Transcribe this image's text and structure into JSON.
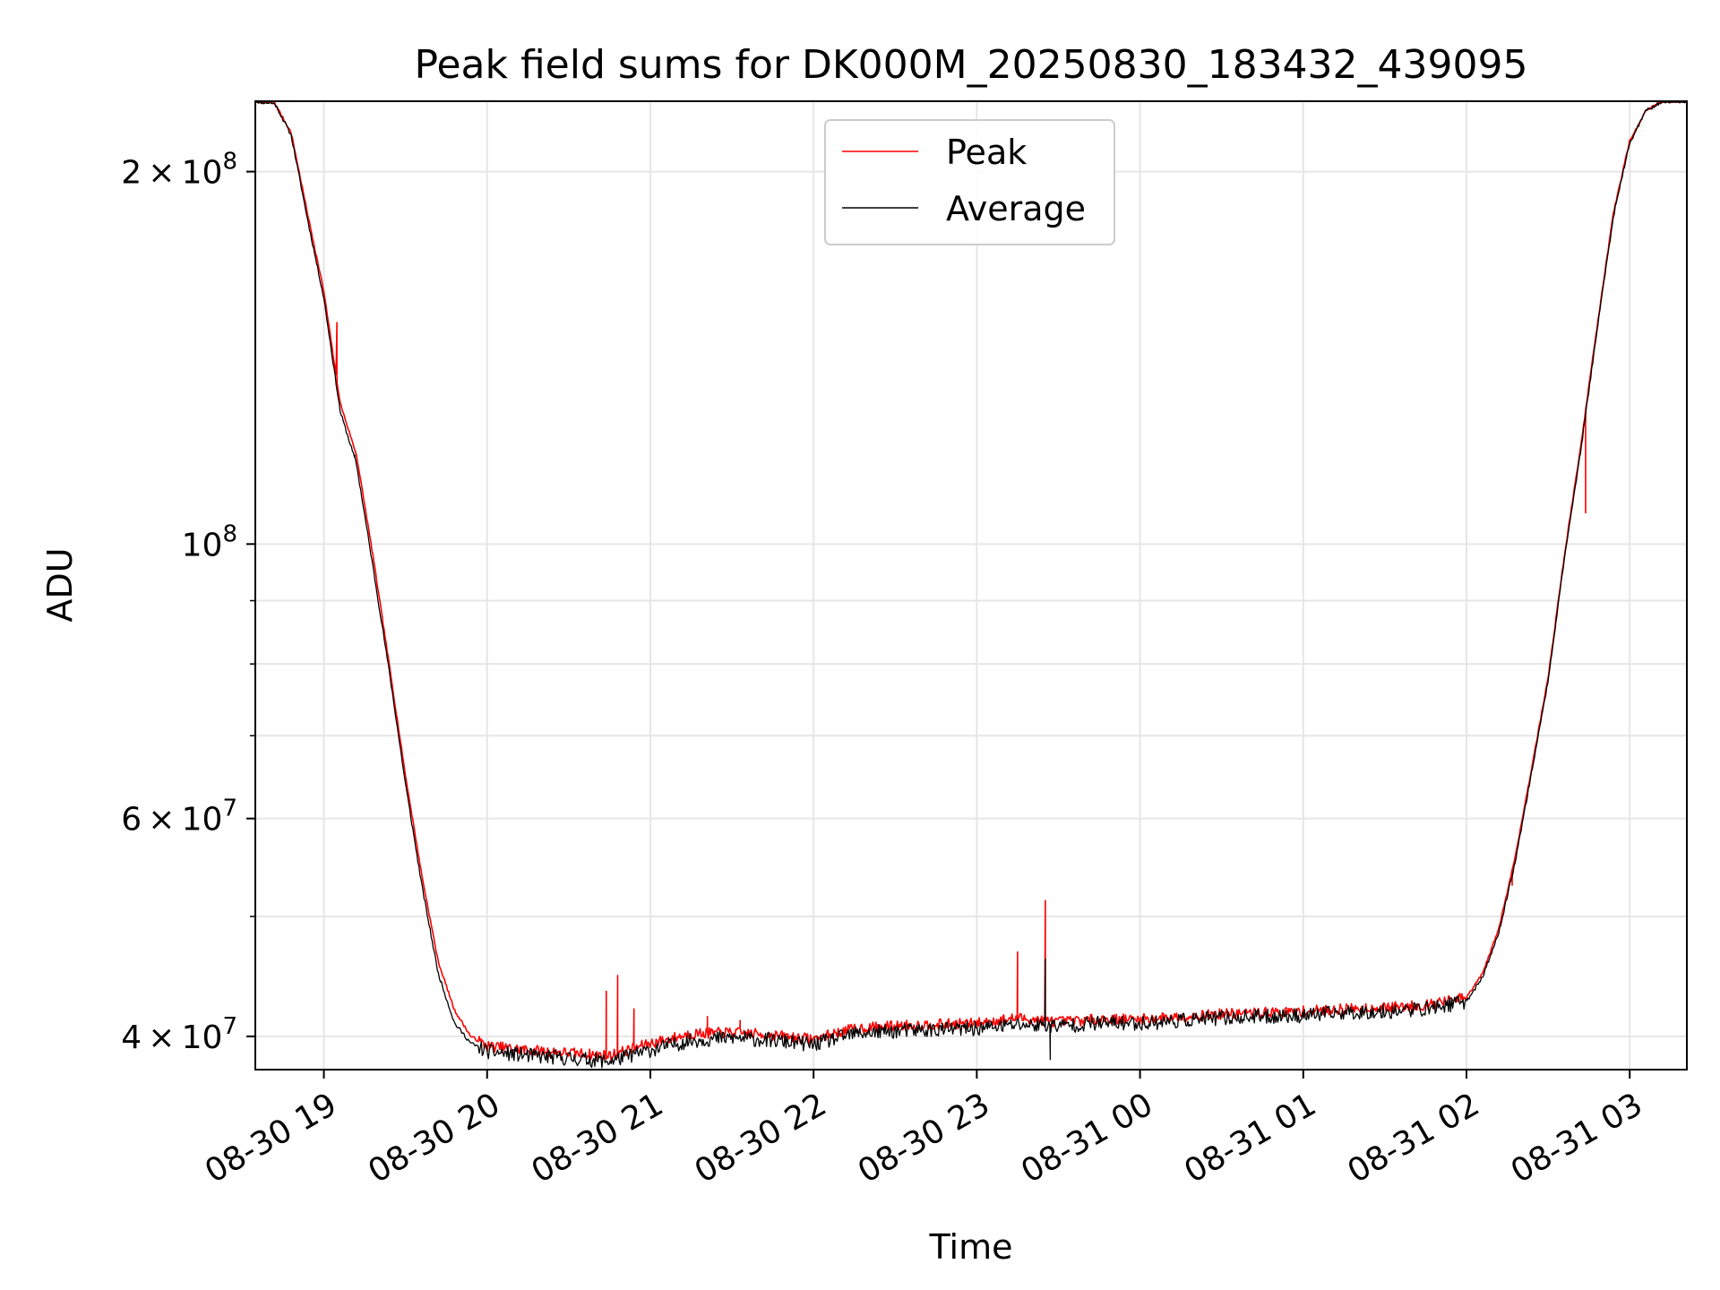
{
  "chart_data": {
    "type": "line",
    "title": "Peak field sums for DK000M_20250830_183432_439095",
    "xlabel": "Time",
    "ylabel": "ADU",
    "yscale": "log",
    "xlim": [
      -0.42,
      8.35
    ],
    "ylim": [
      37600000,
      228000000
    ],
    "grid": true,
    "legend_position": "top-center",
    "x_ticks": [
      {
        "pos": 0,
        "label": "08-30 19"
      },
      {
        "pos": 1,
        "label": "08-30 20"
      },
      {
        "pos": 2,
        "label": "08-30 21"
      },
      {
        "pos": 3,
        "label": "08-30 22"
      },
      {
        "pos": 4,
        "label": "08-30 23"
      },
      {
        "pos": 5,
        "label": "08-31 00"
      },
      {
        "pos": 6,
        "label": "08-31 01"
      },
      {
        "pos": 7,
        "label": "08-31 02"
      },
      {
        "pos": 8,
        "label": "08-31 03"
      }
    ],
    "y_major_ticks": [
      {
        "value": 40000000,
        "mantissa": "4",
        "base": "10",
        "exp": "7"
      },
      {
        "value": 60000000,
        "mantissa": "6",
        "base": "10",
        "exp": "7"
      },
      {
        "value": 100000000,
        "mantissa": "",
        "base": "10",
        "exp": "8"
      },
      {
        "value": 200000000,
        "mantissa": "2",
        "base": "10",
        "exp": "8"
      }
    ],
    "y_minor_ticks": [
      50000000,
      70000000,
      80000000,
      90000000
    ],
    "x_hours_from_1900": [
      -0.42,
      -0.3,
      -0.2,
      -0.1,
      0.0,
      0.1,
      0.2,
      0.3,
      0.4,
      0.5,
      0.6,
      0.7,
      0.8,
      0.9,
      1.0,
      1.25,
      1.5,
      1.75,
      2.0,
      2.25,
      2.5,
      2.75,
      3.0,
      3.25,
      3.5,
      3.75,
      4.0,
      4.25,
      4.5,
      4.75,
      5.0,
      5.25,
      5.5,
      5.75,
      6.0,
      6.25,
      6.5,
      6.75,
      7.0,
      7.1,
      7.2,
      7.3,
      7.4,
      7.5,
      7.6,
      7.7,
      7.8,
      7.9,
      8.0,
      8.1,
      8.2,
      8.35
    ],
    "series": [
      {
        "name": "Peak",
        "color": "#ff0000",
        "values": [
          228000000,
          227000000,
          215000000,
          185000000,
          160000000,
          130000000,
          118000000,
          98000000,
          80000000,
          65000000,
          54000000,
          46000000,
          42000000,
          40000000,
          39300000,
          39000000,
          38800000,
          38600000,
          39500000,
          40200000,
          40300000,
          40100000,
          39800000,
          40600000,
          40800000,
          40900000,
          41000000,
          41400000,
          41100000,
          41300000,
          41300000,
          41500000,
          41700000,
          41800000,
          41900000,
          42100000,
          42200000,
          42400000,
          43000000,
          45000000,
          49000000,
          56000000,
          66000000,
          78000000,
          98000000,
          120000000,
          150000000,
          185000000,
          212000000,
          224000000,
          228000000,
          228000000
        ]
      },
      {
        "name": "Average",
        "color": "#000000",
        "values": [
          228000000,
          227000000,
          214000000,
          183000000,
          158000000,
          128000000,
          116000000,
          96000000,
          79000000,
          64000000,
          53000000,
          45000000,
          41000000,
          39500000,
          38900000,
          38600000,
          38400000,
          38200000,
          39000000,
          39700000,
          39900000,
          39700000,
          39400000,
          40200000,
          40400000,
          40500000,
          40600000,
          40900000,
          40800000,
          41000000,
          41000000,
          41200000,
          41400000,
          41500000,
          41600000,
          41800000,
          41900000,
          42100000,
          42700000,
          44700000,
          48600000,
          55500000,
          65500000,
          77500000,
          97500000,
          119000000,
          149000000,
          184000000,
          211000000,
          224000000,
          228000000,
          228000000
        ]
      }
    ],
    "spikes": [
      {
        "x": 0.08,
        "series": "Peak",
        "value": 151000000
      },
      {
        "x": 0.19,
        "series": "Average",
        "value": 118000000
      },
      {
        "x": 1.73,
        "series": "Peak",
        "value": 43500000
      },
      {
        "x": 1.8,
        "series": "Peak",
        "value": 44800000
      },
      {
        "x": 1.9,
        "series": "Peak",
        "value": 42100000
      },
      {
        "x": 2.35,
        "series": "Peak",
        "value": 41500000
      },
      {
        "x": 2.55,
        "series": "Peak",
        "value": 41200000
      },
      {
        "x": 4.25,
        "series": "Peak",
        "value": 46800000
      },
      {
        "x": 4.42,
        "series": "Peak",
        "value": 51500000
      },
      {
        "x": 4.42,
        "series": "Average",
        "value": 46200000
      },
      {
        "x": 4.45,
        "series": "Average",
        "value": 38300000
      },
      {
        "x": 7.28,
        "series": "Peak",
        "value": 53000000
      },
      {
        "x": 7.73,
        "series": "Peak",
        "value": 106000000
      }
    ]
  }
}
